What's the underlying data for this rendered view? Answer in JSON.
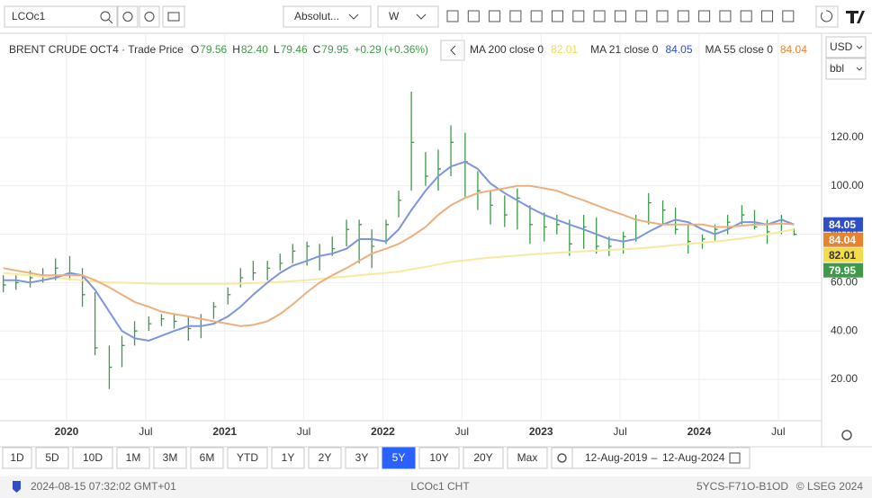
{
  "toolbar": {
    "symbol": "LCOc1",
    "scale": "Absolut...",
    "interval": "W"
  },
  "price_axis": {
    "currency": "USD",
    "unit": "bbl"
  },
  "legend": {
    "instrument": "BRENT CRUDE OCT4 · Trade Price",
    "o_label": "O",
    "open": "79.56",
    "h_label": "H",
    "high": "82.40",
    "l_label": "L",
    "low": "79.46",
    "c_label": "C",
    "change": "+0.29 (+0.36%)"
  },
  "ranges": [
    "1D",
    "5D",
    "10D",
    "1M",
    "3M",
    "6M",
    "YTD",
    "1Y",
    "2Y",
    "3Y",
    "5Y",
    "10Y",
    "20Y",
    "Max"
  ],
  "active_range_index": 10,
  "date_range": {
    "from": "12-Aug-2019",
    "separator": "–",
    "to": "12-Aug-2024"
  },
  "status": {
    "timestamp": "2024-08-15 07:32:02 GMT+01",
    "source": "LCOc1 CHT",
    "code": "5YCS-F71O-B1OD",
    "copyright": "© LSEG 2024"
  },
  "chart_data": {
    "type": "ohlc",
    "color": "#3c9a47",
    "close_label_color": "#3f9a48",
    "grid": true,
    "xlim": [
      2019.579,
      2024.774
    ],
    "ylim": [
      2.9,
      163.1
    ],
    "xticks": [
      2020,
      {
        "value": 2020.5,
        "label": "Jul"
      },
      2021,
      {
        "value": 2021.5,
        "label": "Jul"
      },
      2022,
      {
        "value": 2022.5,
        "label": "Jul"
      },
      2023,
      {
        "value": 2023.5,
        "label": "Jul"
      },
      2024,
      {
        "value": 2024.5,
        "label": "Jul"
      }
    ],
    "yticks": [
      {
        "value": 20,
        "label": "20.00"
      },
      {
        "value": 40,
        "label": "40.00"
      },
      {
        "value": 60,
        "label": "60.00"
      },
      {
        "value": 80,
        "label": "80.00"
      },
      {
        "value": 100,
        "label": "100.00"
      },
      {
        "value": 120,
        "label": "120.00"
      }
    ],
    "x": [
      2019.6,
      2019.68,
      2019.77,
      2019.85,
      2019.93,
      2020.02,
      2020.1,
      2020.18,
      2020.27,
      2020.35,
      2020.43,
      2020.52,
      2020.6,
      2020.68,
      2020.77,
      2020.85,
      2020.93,
      2021.02,
      2021.1,
      2021.18,
      2021.27,
      2021.35,
      2021.43,
      2021.52,
      2021.6,
      2021.68,
      2021.77,
      2021.85,
      2021.93,
      2022.02,
      2022.1,
      2022.18,
      2022.27,
      2022.35,
      2022.43,
      2022.52,
      2022.6,
      2022.68,
      2022.77,
      2022.85,
      2022.93,
      2023.02,
      2023.1,
      2023.18,
      2023.27,
      2023.35,
      2023.43,
      2023.52,
      2023.6,
      2023.68,
      2023.77,
      2023.85,
      2023.93,
      2024.02,
      2024.1,
      2024.18,
      2024.27,
      2024.35,
      2024.43,
      2024.52,
      2024.6
    ],
    "high": [
      63,
      63,
      65,
      66,
      70,
      71,
      66,
      56,
      34,
      38,
      44,
      46,
      47,
      47,
      46,
      47,
      52,
      58,
      66,
      69,
      69,
      72,
      76,
      77,
      76,
      79,
      86,
      86,
      82,
      86,
      98,
      139,
      114,
      115,
      125,
      122,
      106,
      98,
      96,
      99,
      92,
      89,
      88,
      86,
      88,
      87,
      79,
      81,
      88,
      97,
      94,
      91,
      84,
      80,
      84,
      88,
      92,
      90,
      86,
      88,
      82.4
    ],
    "low": [
      56,
      57,
      58,
      60,
      61,
      61,
      50,
      30,
      16,
      25,
      34,
      40,
      42,
      41,
      36,
      37,
      45,
      51,
      58,
      61,
      61,
      65,
      68,
      67,
      65,
      71,
      75,
      68,
      66,
      76,
      87,
      98,
      100,
      98,
      104,
      95,
      90,
      84,
      83,
      82,
      76,
      77,
      80,
      71,
      74,
      72,
      71,
      72,
      77,
      84,
      84,
      80,
      72,
      74,
      77,
      80,
      84,
      82,
      76,
      80,
      79.46
    ],
    "close": [
      59,
      60,
      62,
      63,
      66,
      64,
      55,
      33,
      25,
      34,
      40,
      43,
      45,
      44,
      41,
      45,
      50,
      55,
      62,
      64,
      66,
      68,
      73,
      75,
      71,
      74,
      82,
      84,
      75,
      84,
      94,
      118,
      104,
      107,
      118,
      110,
      98,
      92,
      88,
      95,
      84,
      83,
      84,
      76,
      83,
      75,
      75,
      79,
      86,
      93,
      90,
      82,
      77,
      78,
      82,
      85,
      88,
      83,
      81,
      86,
      79.95
    ],
    "series": [
      {
        "name": "MA 200 close 0",
        "color": "#f7e9a0",
        "label_color": "#f2dc4a",
        "values": [
          64,
          63.5,
          63,
          62.5,
          62,
          61.5,
          61,
          60.5,
          60,
          60,
          59.8,
          59.6,
          59.5,
          59.5,
          59.5,
          59.5,
          59.5,
          59.5,
          59.6,
          59.8,
          60,
          60.3,
          60.6,
          61,
          61.5,
          62,
          62.5,
          63,
          63.5,
          64,
          64.5,
          65.5,
          66.5,
          67.5,
          68.5,
          69.2,
          69.8,
          70.3,
          70.8,
          71.2,
          71.6,
          72,
          72.3,
          72.6,
          72.9,
          73.2,
          73.5,
          73.8,
          74.1,
          74.5,
          75,
          75.5,
          76,
          76.5,
          77,
          77.5,
          78.2,
          79,
          80,
          81,
          82.01
        ]
      },
      {
        "name": "MA 21 close 0",
        "color": "#7d95da",
        "label_color": "#2e4fc6",
        "values": [
          61,
          61,
          60,
          61,
          62,
          64,
          63,
          57,
          48,
          40,
          37,
          36,
          38,
          40,
          42,
          42,
          43,
          46,
          50,
          55,
          60,
          64,
          67,
          69,
          71,
          72,
          74,
          78,
          78,
          77,
          82,
          90,
          98,
          104,
          108,
          110,
          107,
          101,
          97,
          94,
          91,
          88,
          86,
          84,
          82,
          80,
          78,
          77,
          78,
          81,
          84,
          86,
          85,
          82,
          80,
          82,
          85,
          85,
          84,
          86,
          84.05
        ]
      },
      {
        "name": "MA 55 close 0",
        "color": "#eab07f",
        "label_color": "#e8822e",
        "values": [
          66,
          65,
          64,
          63,
          63,
          63,
          63,
          61,
          58,
          55,
          52,
          50,
          48,
          47,
          46,
          45,
          44,
          43,
          42,
          42.5,
          44,
          47,
          51,
          56,
          60,
          63,
          66,
          69,
          72,
          74,
          76,
          79,
          83,
          88,
          92,
          95,
          97,
          98,
          99,
          100,
          100,
          99,
          98,
          96,
          94,
          92,
          90,
          88,
          86,
          85,
          84,
          84,
          84,
          84,
          83,
          83,
          83.5,
          84,
          84,
          84.5,
          84.04
        ]
      }
    ]
  }
}
